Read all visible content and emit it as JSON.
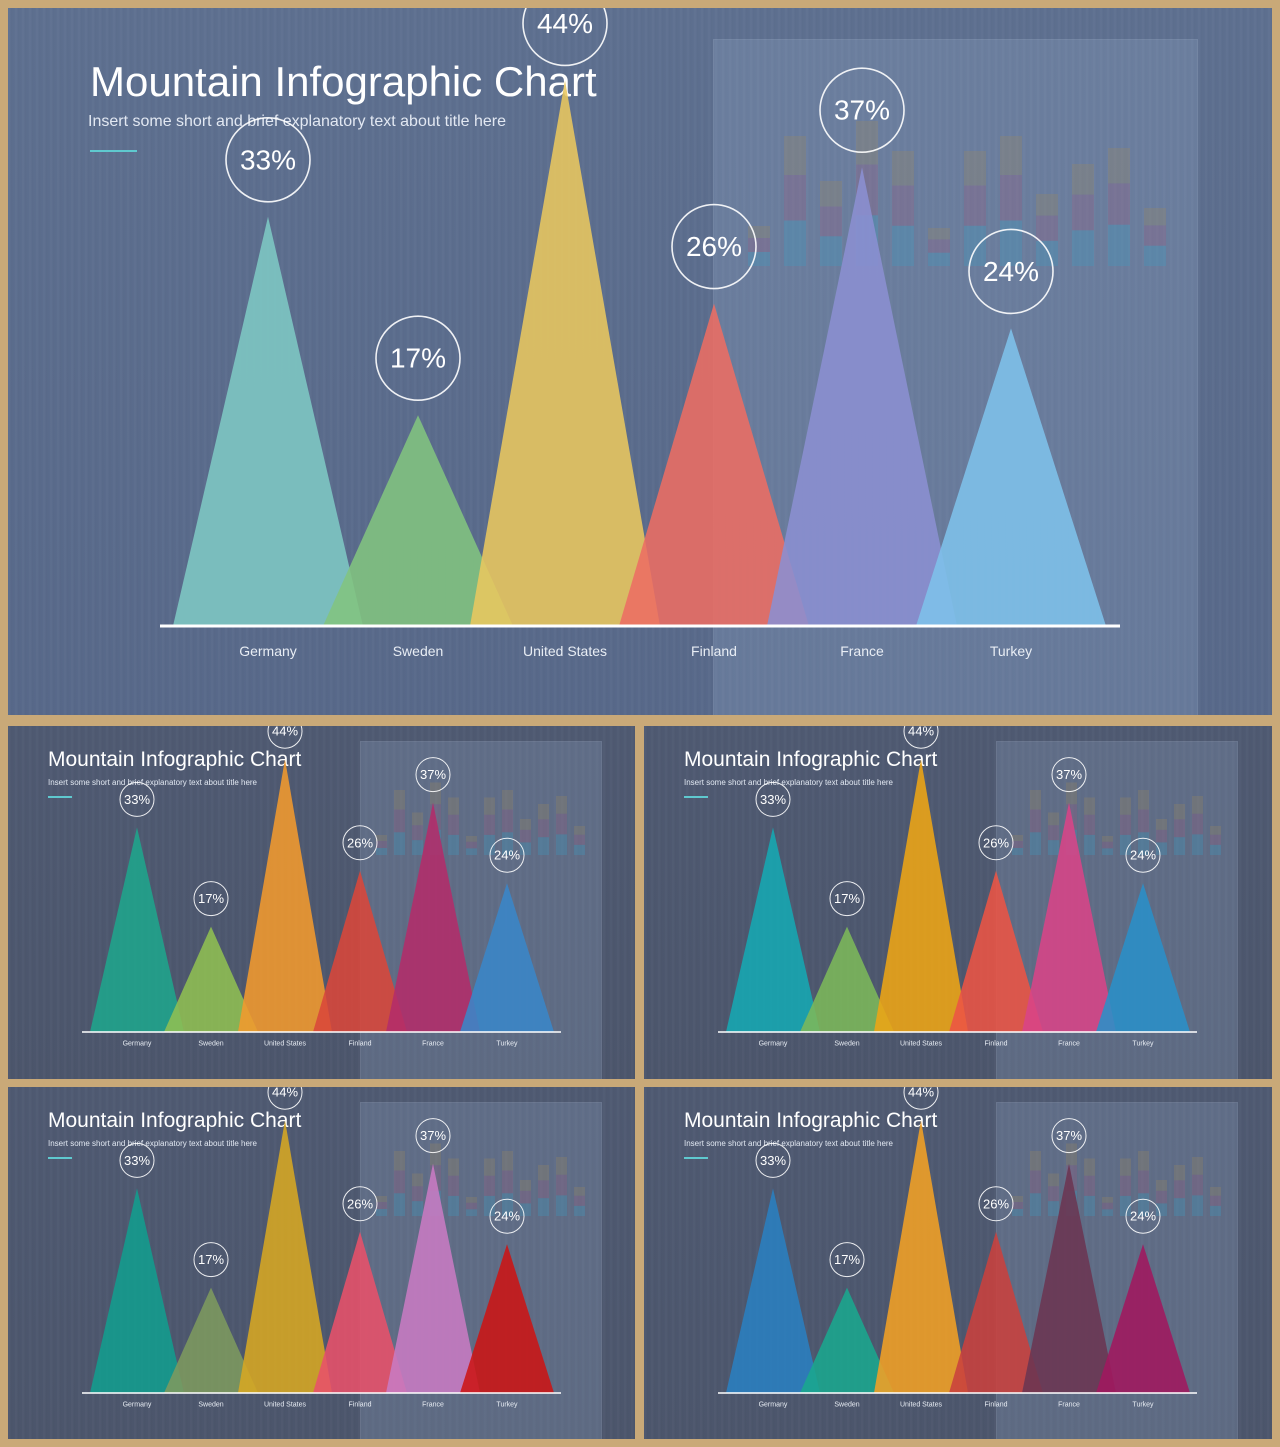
{
  "slides": [
    {
      "title": "Mountain Infographic Chart",
      "subtitle": "Insert some short and brief explanatory text about title here",
      "colors": [
        "#7ec8c4",
        "#82c47f",
        "#e9c75f",
        "#ec6d63",
        "#8b8fd2",
        "#7ec2ea"
      ]
    },
    {
      "title": "Mountain Infographic Chart",
      "subtitle": "Insert some short and brief explanatory text about title here",
      "colors": [
        "#1fa58c",
        "#8fbf52",
        "#f29a2e",
        "#d9473a",
        "#b32c6a",
        "#3a86c8"
      ]
    },
    {
      "title": "Mountain Infographic Chart",
      "subtitle": "Insert some short and brief explanatory text about title here",
      "colors": [
        "#16a8b3",
        "#7cb85a",
        "#eea515",
        "#ec5444",
        "#d84488",
        "#2a8fc8"
      ]
    },
    {
      "title": "Mountain Infographic Chart",
      "subtitle": "Insert some short and brief explanatory text about title here",
      "colors": [
        "#129d8e",
        "#7d9a5f",
        "#d7a722",
        "#e8516a",
        "#c87bc3",
        "#cc1515"
      ]
    },
    {
      "title": "Mountain Infographic Chart",
      "subtitle": "Insert some short and brief explanatory text about title here",
      "colors": [
        "#2a80c0",
        "#1aa78e",
        "#f2a124",
        "#c9413d",
        "#6b3552",
        "#a1185e"
      ]
    }
  ],
  "chart_data": {
    "type": "bar",
    "categories": [
      "Germany",
      "Sweden",
      "United States",
      "Finland",
      "France",
      "Turkey"
    ],
    "values": [
      33,
      17,
      44,
      26,
      37,
      24
    ],
    "value_labels": [
      "33%",
      "17%",
      "44%",
      "26%",
      "37%",
      "24%"
    ],
    "ylim": [
      0,
      50
    ]
  }
}
